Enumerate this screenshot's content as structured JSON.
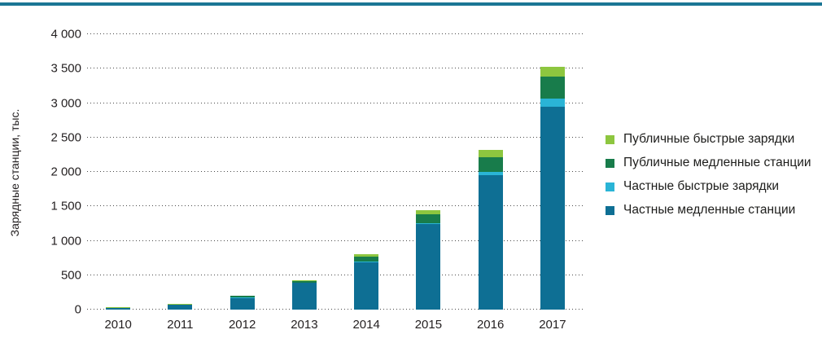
{
  "page": {
    "top_rule_color": "#1b7695",
    "background": "#ffffff"
  },
  "chart_data": {
    "type": "bar",
    "stacked": true,
    "title": "",
    "xlabel": "",
    "ylabel": "Зарядные станции, тыс.",
    "categories": [
      "2010",
      "2011",
      "2012",
      "2013",
      "2014",
      "2015",
      "2016",
      "2017"
    ],
    "ylim": [
      0,
      4000
    ],
    "ytick_step": 500,
    "ytick_labels": [
      "0",
      "500",
      "1 000",
      "1 500",
      "2 000",
      "2 500",
      "3 000",
      "3 500",
      "4 000"
    ],
    "grid": "horizontal-dotted",
    "legend_position": "right",
    "series": [
      {
        "name": "Частные медленные станции",
        "color": "#0e6f94",
        "values": [
          25,
          70,
          170,
          390,
          690,
          1240,
          1950,
          2950
        ]
      },
      {
        "name": "Частные быстрые зарядки",
        "color": "#2ab4d6",
        "values": [
          1,
          2,
          4,
          6,
          10,
          20,
          50,
          120
        ]
      },
      {
        "name": "Публичные медленные станции",
        "color": "#187c4b",
        "values": [
          3,
          5,
          25,
          20,
          75,
          125,
          215,
          315
        ]
      },
      {
        "name": "Публичные быстрые зарядки",
        "color": "#8dc63f",
        "values": [
          1,
          2,
          8,
          10,
          30,
          60,
          105,
          140
        ]
      }
    ],
    "legend": [
      {
        "label": "Публичные быстрые зарядки",
        "color": "#8dc63f"
      },
      {
        "label": "Публичные медленные станции",
        "color": "#187c4b"
      },
      {
        "label": "Частные быстрые зарядки",
        "color": "#2ab4d6"
      },
      {
        "label": "Частные медленные станции",
        "color": "#0e6f94"
      }
    ]
  }
}
